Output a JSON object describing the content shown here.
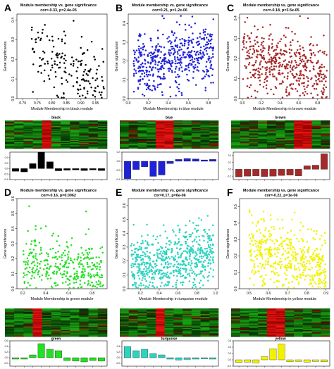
{
  "figure": {
    "panel_letters": [
      "A",
      "B",
      "C",
      "D",
      "E",
      "F"
    ],
    "scatter_titles": [
      {
        "line1": "Module membership vs. gene significance",
        "line2": "cor=-0.33, p=2.4e-05"
      },
      {
        "line1": "Module membership vs. gene significance",
        "line2": "cor=0.21, p=1.2e-06"
      },
      {
        "line1": "Module membership vs. gene significance",
        "line2": "cor=-0.18, p=3.5e-05"
      },
      {
        "line1": "Module membership vs. gene significance",
        "line2": "cor=-0.16, p=0.0062"
      },
      {
        "line1": "Module membership vs. gene significance",
        "line2": "cor=0.17, p=6e-06"
      },
      {
        "line1": "Module membership vs. gene significance",
        "line2": "cor=-0.22, p=1e-06"
      }
    ],
    "scatter_ylabel": "Gene significance",
    "scatter_xlabels": [
      "Module Membership in black module",
      "Module Membership in blue module",
      "Module Membership in brown module",
      "Module Membership in green module",
      "Module Membership in turquoise module",
      "Module Membership in yellow module"
    ],
    "module_names": [
      "black",
      "blue",
      "brown",
      "green",
      "turquoise",
      "yellow"
    ]
  },
  "chart_data": [
    {
      "type": "scatter",
      "module": "black",
      "color": "#000000",
      "n": 170,
      "xlim": [
        0.68,
        0.99
      ],
      "ylim": [
        0.0,
        0.43
      ],
      "xticks": [
        "0.70",
        "0.75",
        "0.80",
        "0.85",
        "0.90",
        "0.95"
      ],
      "xtick_values": [
        0.7,
        0.75,
        0.8,
        0.85,
        0.9,
        0.95
      ],
      "yticks": [
        "0.0",
        "0.1",
        "0.2",
        "0.3",
        "0.4"
      ],
      "ytick_values": [
        0.0,
        0.1,
        0.2,
        0.3,
        0.4
      ],
      "x_range": [
        0.73,
        0.98
      ],
      "slope": -0.9,
      "intercept": 0.93,
      "noise": 0.085
    },
    {
      "type": "scatter",
      "module": "blue",
      "color": "#1f22d8",
      "n": 520,
      "xlim": [
        0.0,
        0.9
      ],
      "ylim": [
        0.0,
        0.45
      ],
      "xticks": [
        "0.0",
        "0.2",
        "0.4",
        "0.6",
        "0.8"
      ],
      "xtick_values": [
        0.0,
        0.2,
        0.4,
        0.6,
        0.8
      ],
      "yticks": [
        "0.0",
        "0.1",
        "0.2",
        "0.3",
        "0.4"
      ],
      "ytick_values": [
        0.0,
        0.1,
        0.2,
        0.3,
        0.4
      ],
      "x_range": [
        0.05,
        0.85
      ],
      "slope": 0.1,
      "intercept": 0.17,
      "noise": 0.08
    },
    {
      "type": "scatter",
      "module": "brown",
      "color": "#a52a2a",
      "n": 480,
      "xlim": [
        -0.03,
        0.93
      ],
      "ylim": [
        0.0,
        0.42
      ],
      "xticks": [
        "0.0",
        "0.2",
        "0.4",
        "0.6",
        "0.8"
      ],
      "xtick_values": [
        0.0,
        0.2,
        0.4,
        0.6,
        0.8
      ],
      "yticks": [
        "0.0",
        "0.1",
        "0.2",
        "0.3",
        "0.4"
      ],
      "ytick_values": [
        0.0,
        0.1,
        0.2,
        0.3,
        0.4
      ],
      "x_range": [
        0.0,
        0.9
      ],
      "slope": -0.12,
      "intercept": 0.22,
      "noise": 0.085
    },
    {
      "type": "scatter",
      "module": "green",
      "color": "#22e022",
      "n": 330,
      "xlim": [
        0.15,
        0.93
      ],
      "ylim": [
        0.0,
        0.6
      ],
      "xticks": [
        "0.2",
        "0.4",
        "0.6",
        "0.8"
      ],
      "xtick_values": [
        0.2,
        0.4,
        0.6,
        0.8
      ],
      "yticks": [
        "0.0",
        "0.1",
        "0.2",
        "0.3",
        "0.4",
        "0.5",
        "0.6"
      ],
      "ytick_values": [
        0.0,
        0.1,
        0.2,
        0.3,
        0.4,
        0.5,
        0.6
      ],
      "x_range": [
        0.2,
        0.9
      ],
      "slope": -0.05,
      "intercept": 0.17,
      "noise": 0.1
    },
    {
      "type": "scatter",
      "module": "turquoise",
      "color": "#2ed3bf",
      "n": 640,
      "xlim": [
        0.07,
        1.03
      ],
      "ylim": [
        0.0,
        0.65
      ],
      "xticks": [
        "0.2",
        "0.4",
        "0.6",
        "0.8",
        "1.0"
      ],
      "xtick_values": [
        0.2,
        0.4,
        0.6,
        0.8,
        1.0
      ],
      "yticks": [
        "0.0",
        "0.1",
        "0.2",
        "0.3",
        "0.4",
        "0.5",
        "0.6"
      ],
      "ytick_values": [
        0.0,
        0.1,
        0.2,
        0.3,
        0.4,
        0.5,
        0.6
      ],
      "x_range": [
        0.1,
        0.98
      ],
      "slope": 0.12,
      "intercept": 0.14,
      "noise": 0.11
    },
    {
      "type": "scatter",
      "module": "yellow",
      "color": "#f2f200",
      "n": 480,
      "xlim": [
        0.45,
        0.92
      ],
      "ylim": [
        0.0,
        0.55
      ],
      "xticks": [
        "0.5",
        "0.6",
        "0.7",
        "0.8",
        "0.9"
      ],
      "xtick_values": [
        0.5,
        0.6,
        0.7,
        0.8,
        0.9
      ],
      "yticks": [
        "0.0",
        "0.1",
        "0.2",
        "0.3",
        "0.4",
        "0.5"
      ],
      "ytick_values": [
        0.0,
        0.1,
        0.2,
        0.3,
        0.4,
        0.5
      ],
      "x_range": [
        0.5,
        0.9
      ],
      "slope": -0.3,
      "intercept": 0.4,
      "noise": 0.1
    },
    {
      "type": "heatmap",
      "module": "black",
      "red_columns": [
        4
      ]
    },
    {
      "type": "heatmap",
      "module": "blue",
      "red_columns": [
        4,
        5
      ]
    },
    {
      "type": "heatmap",
      "module": "brown",
      "red_columns": [
        7,
        8
      ]
    },
    {
      "type": "heatmap",
      "module": "green",
      "red_columns": [
        3
      ]
    },
    {
      "type": "heatmap",
      "module": "turquoise",
      "red_columns": [
        4
      ]
    },
    {
      "type": "heatmap",
      "module": "yellow",
      "red_columns": [
        4,
        5
      ]
    },
    {
      "type": "bar",
      "module": "black",
      "color": "#000000",
      "ylim": [
        -0.4,
        0.6
      ],
      "yticks": [
        "-0.4",
        "-0.2",
        "0.0",
        "0.2",
        "0.4"
      ],
      "ytick_values": [
        -0.4,
        -0.2,
        0.0,
        0.2,
        0.4
      ],
      "values": [
        -0.1,
        -0.12,
        0.18,
        0.6,
        0.25,
        -0.08,
        -0.06,
        -0.05,
        -0.07,
        -0.05,
        -0.07
      ]
    },
    {
      "type": "bar",
      "module": "blue",
      "color": "#1f22d8",
      "ylim": [
        -0.4,
        0.2
      ],
      "yticks": [
        "-0.4",
        "-0.2",
        "0.0",
        "0.2"
      ],
      "ytick_values": [
        -0.4,
        -0.2,
        0.0,
        0.2
      ],
      "values": [
        -0.38,
        -0.18,
        -0.12,
        -0.33,
        -0.3,
        -0.05,
        0.04,
        0.06,
        0.05,
        0.03,
        0.04
      ]
    },
    {
      "type": "bar",
      "module": "brown",
      "color": "#a52a2a",
      "ylim": [
        -0.3,
        0.5
      ],
      "yticks": [
        "-0.2",
        "0.0",
        "0.2",
        "0.4"
      ],
      "ytick_values": [
        -0.2,
        0.0,
        0.2,
        0.4
      ],
      "values": [
        -0.22,
        -0.2,
        -0.19,
        -0.21,
        -0.2,
        -0.18,
        -0.17,
        -0.19,
        0.1,
        0.12,
        0.45
      ]
    },
    {
      "type": "bar",
      "module": "green",
      "color": "#22e022",
      "ylim": [
        -0.3,
        0.6
      ],
      "yticks": [
        "-0.2",
        "0.0",
        "0.2",
        "0.4",
        "0.6"
      ],
      "ytick_values": [
        -0.2,
        0.0,
        0.2,
        0.4,
        0.6
      ],
      "values": [
        -0.05,
        -0.05,
        0.1,
        0.5,
        0.3,
        0.25,
        -0.1,
        -0.12,
        -0.15,
        -0.1,
        -0.12
      ]
    },
    {
      "type": "bar",
      "module": "turquoise",
      "color": "#2ed3bf",
      "ylim": [
        -0.3,
        0.6
      ],
      "yticks": [
        "-0.2",
        "0.0",
        "0.2",
        "0.4"
      ],
      "ytick_values": [
        -0.2,
        0.0,
        0.2,
        0.4
      ],
      "values": [
        0.4,
        0.25,
        0.3,
        0.15,
        0.1,
        -0.05,
        -0.08,
        -0.06,
        -0.05,
        -0.04,
        -0.05
      ]
    },
    {
      "type": "bar",
      "module": "yellow",
      "color": "#f2f200",
      "ylim": [
        -0.2,
        0.6
      ],
      "yticks": [
        "-0.2",
        "0.0",
        "0.2",
        "0.4",
        "0.6"
      ],
      "ytick_values": [
        -0.2,
        0.0,
        0.2,
        0.4,
        0.6
      ],
      "values": [
        -0.08,
        -0.07,
        -0.1,
        0.1,
        0.35,
        0.5,
        -0.06,
        -0.05,
        -0.07,
        -0.05,
        -0.06
      ]
    }
  ]
}
